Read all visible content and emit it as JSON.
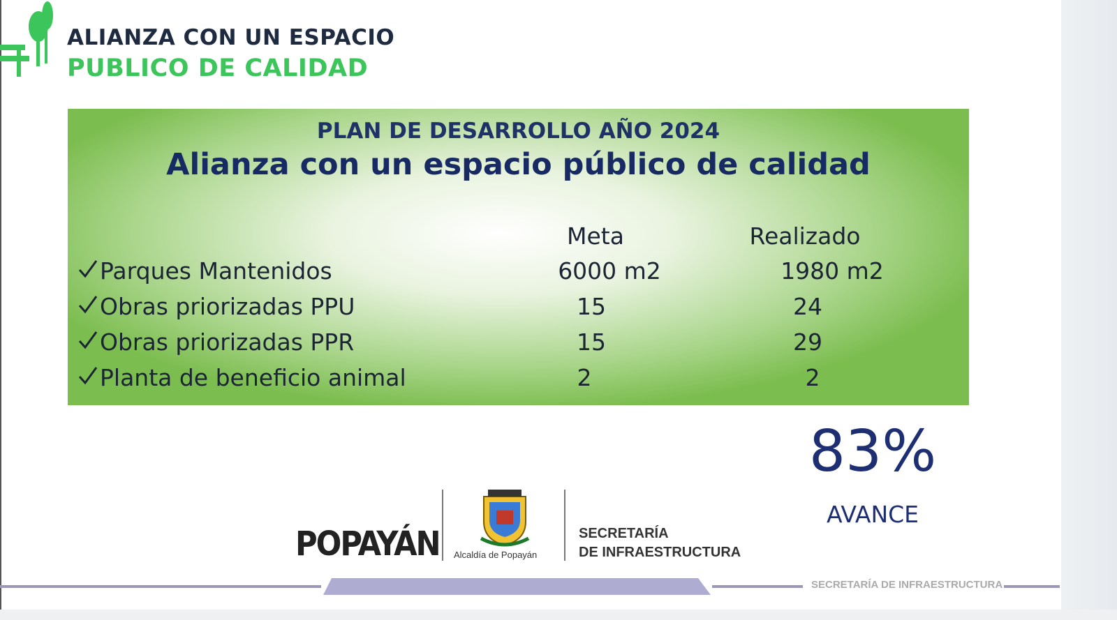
{
  "header": {
    "title_line1": "ALIANZA CON UN ESPACIO",
    "title_line2": "PUBLICO DE CALIDAD"
  },
  "panel": {
    "kicker": "PLAN DE DESARROLLO AÑO 2024",
    "title": "Alianza con un espacio público de calidad",
    "columns": [
      "Meta",
      "Realizado"
    ],
    "rows": [
      [
        "Parques Mantenidos",
        "6000 m2",
        "1980 m2"
      ],
      [
        "Obras priorizadas PPU",
        "15",
        "24"
      ],
      [
        "Obras priorizadas PPR",
        "15",
        "29"
      ],
      [
        "Planta de beneficio animal",
        "2",
        "2"
      ]
    ]
  },
  "progress": {
    "value": "83%",
    "label": "AVANCE"
  },
  "footer": {
    "city_logo": "POPAYÁN",
    "crest_caption": "Alcaldía de Popayán",
    "office_line1": "SECRETARÍA",
    "office_line2": "DE INFRAESTRUCTURA",
    "band_text": "SECRETARÍA DE INFRAESTRUCTURA"
  }
}
